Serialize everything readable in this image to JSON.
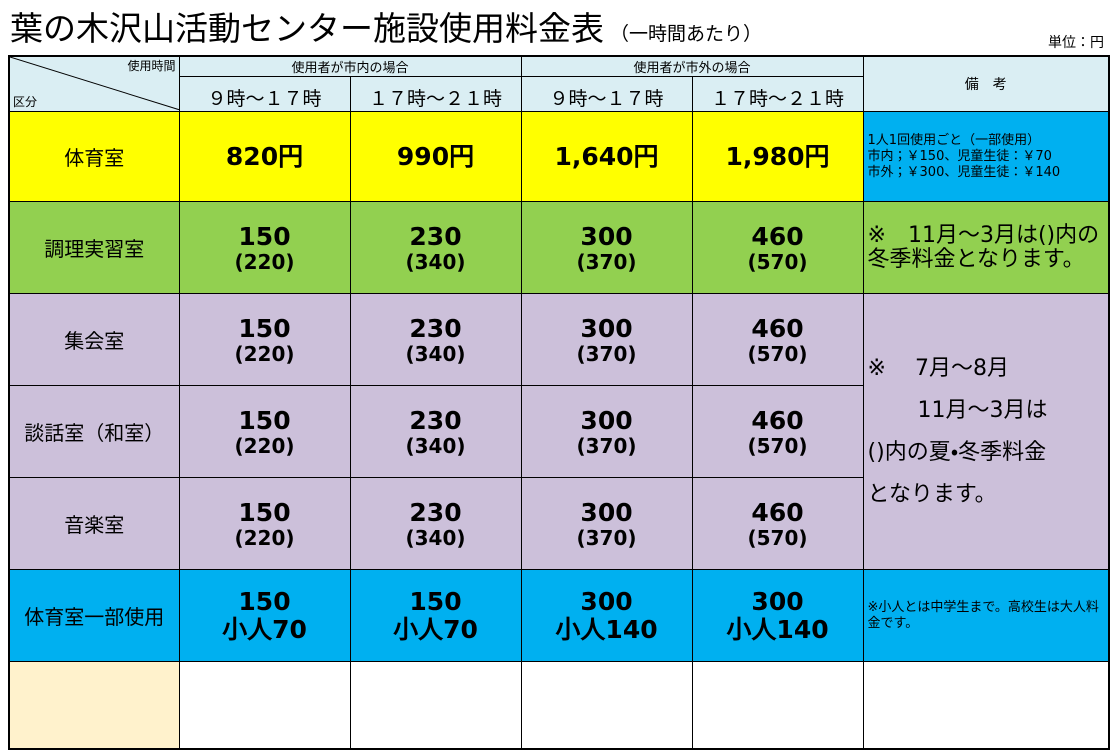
{
  "header": {
    "title": "葉の木沢山活動センター施設使用料金表",
    "subtitle": "（一時間あたり）",
    "unit": "単位：円"
  },
  "table": {
    "corner": {
      "top": "使用時間",
      "bottom": "区分"
    },
    "groups": [
      "使用者が市内の場合",
      "使用者が市外の場合"
    ],
    "times": [
      "９時～１７時",
      "１７時～２１時",
      "９時～１７時",
      "１７時～２１時"
    ],
    "remarks_header": "備　考",
    "rows": [
      {
        "label": "体育室",
        "cells": [
          [
            "820円"
          ],
          [
            "990円"
          ],
          [
            "1,640円"
          ],
          [
            "1,980円"
          ]
        ],
        "remark": [
          "1人1回使用ごと（一部使用）",
          "市内；￥150、児童生徒：￥70",
          "市外；￥300、児童生徒：￥140"
        ]
      },
      {
        "label": "調理実習室",
        "cells": [
          [
            "150",
            "(220)"
          ],
          [
            "230",
            "(340)"
          ],
          [
            "300",
            "(370)"
          ],
          [
            "460",
            "(570)"
          ]
        ],
        "remark": [
          "※　11月～3月は()内の 冬季料金となります。"
        ]
      },
      {
        "label": "集会室",
        "cells": [
          [
            "150",
            "(220)"
          ],
          [
            "230",
            "(340)"
          ],
          [
            "300",
            "(370)"
          ],
          [
            "460",
            "(570)"
          ]
        ],
        "remark": [
          "※　 7月～8月",
          "11月～3月は",
          "()内の夏・冬季料金",
          "となります。"
        ]
      },
      {
        "label": "談話室（和室）",
        "cells": [
          [
            "150",
            "(220)"
          ],
          [
            "230",
            "(340)"
          ],
          [
            "300",
            "(370)"
          ],
          [
            "460",
            "(570)"
          ]
        ]
      },
      {
        "label": "音楽室",
        "cells": [
          [
            "150",
            "(220)"
          ],
          [
            "230",
            "(340)"
          ],
          [
            "300",
            "(370)"
          ],
          [
            "460",
            "(570)"
          ]
        ]
      },
      {
        "label": "体育室一部使用",
        "cells": [
          [
            "150",
            "小人70"
          ],
          [
            "150",
            "小人70"
          ],
          [
            "300",
            "小人140"
          ],
          [
            "300",
            "小人140"
          ]
        ],
        "remark": [
          "※小人とは中学生まで。高校生は大人料金です。"
        ]
      }
    ]
  }
}
